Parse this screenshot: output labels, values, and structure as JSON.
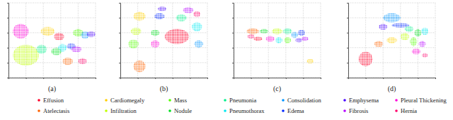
{
  "chart_data": [
    {
      "type": "scatter",
      "title": "(a)",
      "marker": "ellipse",
      "legend": "bottom",
      "grid": true,
      "tick_labels": false,
      "xlim": [
        0,
        100
      ],
      "ylim": [
        0,
        100
      ],
      "xticks": [
        0,
        20,
        40,
        60,
        80,
        100
      ],
      "yticks": [
        0,
        20,
        40,
        60,
        80,
        100
      ],
      "series": [
        {
          "name": "Effusion",
          "color": "#ff0029",
          "x": [
            58
          ],
          "y": [
            55
          ],
          "x_spread": [
            6
          ],
          "y_spread": [
            5
          ]
        },
        {
          "name": "Atelectasis",
          "color": "#ff6200",
          "x": [
            68
          ],
          "y": [
            22
          ],
          "x_spread": [
            6
          ],
          "y_spread": [
            5
          ]
        },
        {
          "name": "Cardiomegaly",
          "color": "#ffcf00",
          "x": [
            45
          ],
          "y": [
            62
          ],
          "x_spread": [
            8
          ],
          "y_spread": [
            6
          ]
        },
        {
          "name": "Infiltration",
          "color": "#c0ff00",
          "x": [
            20
          ],
          "y": [
            30
          ],
          "x_spread": [
            15
          ],
          "y_spread": [
            14
          ]
        },
        {
          "name": "Mass",
          "color": "#52ff00",
          "x": [
            80
          ],
          "y": [
            60
          ],
          "x_spread": [
            6
          ],
          "y_spread": [
            5
          ]
        },
        {
          "name": "Nodule",
          "color": "#00e01d",
          "x": [
            55
          ],
          "y": [
            35
          ],
          "x_spread": [
            6
          ],
          "y_spread": [
            5
          ]
        },
        {
          "name": "Pneumonia",
          "color": "#00f08c",
          "x": [
            38
          ],
          "y": [
            38
          ],
          "x_spread": [
            6
          ],
          "y_spread": [
            6
          ]
        },
        {
          "name": "Pneumothorax",
          "color": "#00e8f0",
          "x": [
            62
          ],
          "y": [
            40
          ],
          "x_spread": [
            5
          ],
          "y_spread": [
            5
          ]
        },
        {
          "name": "Consolidation",
          "color": "#0094ff",
          "x": [
            88
          ],
          "y": [
            57
          ],
          "x_spread": [
            5
          ],
          "y_spread": [
            5
          ]
        },
        {
          "name": "Edema",
          "color": "#0026ff",
          "x": [
            72
          ],
          "y": [
            42
          ],
          "x_spread": [
            5
          ],
          "y_spread": [
            4
          ]
        },
        {
          "name": "Emphysema",
          "color": "#4700ff",
          "x": [
            95
          ],
          "y": [
            58
          ],
          "x_spread": [
            5
          ],
          "y_spread": [
            4
          ]
        },
        {
          "name": "Fibrosis",
          "color": "#b600ff",
          "x": [
            78
          ],
          "y": [
            38
          ],
          "x_spread": [
            6
          ],
          "y_spread": [
            4
          ]
        },
        {
          "name": "Pleural Thickening",
          "color": "#ff00d9",
          "x": [
            14
          ],
          "y": [
            62
          ],
          "x_spread": [
            9
          ],
          "y_spread": [
            10
          ]
        },
        {
          "name": "Hernia",
          "color": "#ff006b",
          "x": [
            85
          ],
          "y": [
            22
          ],
          "x_spread": [
            5
          ],
          "y_spread": [
            4
          ]
        }
      ]
    },
    {
      "type": "scatter",
      "title": "(b)",
      "marker": "ellipse",
      "grid": true,
      "tick_labels": false,
      "xlim": [
        0,
        100
      ],
      "ylim": [
        0,
        100
      ],
      "xticks": [
        0,
        20,
        40,
        60,
        80,
        100
      ],
      "yticks": [
        0,
        20,
        40,
        60,
        80,
        100
      ],
      "series": [
        {
          "color": "#ff0029",
          "x": [
            65
          ],
          "y": [
            55
          ],
          "x_spread": [
            14
          ],
          "y_spread": [
            10
          ]
        },
        {
          "color": "#ff6200",
          "x": [
            22
          ],
          "y": [
            15
          ],
          "x_spread": [
            7
          ],
          "y_spread": [
            8
          ]
        },
        {
          "color": "#ffcf00",
          "x": [
            22
          ],
          "y": [
            82
          ],
          "x_spread": [
            7
          ],
          "y_spread": [
            6
          ]
        },
        {
          "color": "#c0ff00",
          "x": [
            18
          ],
          "y": [
            62
          ],
          "x_spread": [
            6
          ],
          "y_spread": [
            5
          ]
        },
        {
          "color": "#52ff00",
          "x": [
            15
          ],
          "y": [
            45
          ],
          "x_spread": [
            6
          ],
          "y_spread": [
            6
          ]
        },
        {
          "color": "#00e01d",
          "x": [
            40
          ],
          "y": [
            60
          ],
          "x_spread": [
            5
          ],
          "y_spread": [
            4
          ]
        },
        {
          "color": "#00f08c",
          "x": [
            70
          ],
          "y": [
            80
          ],
          "x_spread": [
            6
          ],
          "y_spread": [
            5
          ]
        },
        {
          "color": "#00e8f0",
          "x": [
            88
          ],
          "y": [
            68
          ],
          "x_spread": [
            6
          ],
          "y_spread": [
            6
          ]
        },
        {
          "color": "#0094ff",
          "x": [
            90
          ],
          "y": [
            45
          ],
          "x_spread": [
            5
          ],
          "y_spread": [
            5
          ]
        },
        {
          "color": "#0026ff",
          "x": [
            45
          ],
          "y": [
            82
          ],
          "x_spread": [
            6
          ],
          "y_spread": [
            4
          ]
        },
        {
          "color": "#4700ff",
          "x": [
            48
          ],
          "y": [
            92
          ],
          "x_spread": [
            5
          ],
          "y_spread": [
            3
          ]
        },
        {
          "color": "#b600ff",
          "x": [
            78
          ],
          "y": [
            90
          ],
          "x_spread": [
            6
          ],
          "y_spread": [
            4
          ]
        },
        {
          "color": "#ff00d9",
          "x": [
            40
          ],
          "y": [
            45
          ],
          "x_spread": [
            5
          ],
          "y_spread": [
            5
          ]
        },
        {
          "color": "#ff006b",
          "x": [
            88
          ],
          "y": [
            85
          ],
          "x_spread": [
            4
          ],
          "y_spread": [
            4
          ]
        }
      ]
    },
    {
      "type": "scatter",
      "title": "(c)",
      "marker": "ellipse",
      "grid": true,
      "tick_labels": false,
      "xlim": [
        0,
        100
      ],
      "ylim": [
        0,
        100
      ],
      "xticks": [
        0,
        20,
        40,
        60,
        80,
        100
      ],
      "yticks": [
        0,
        20,
        40,
        60,
        80,
        100
      ],
      "series": [
        {
          "color": "#ff0029",
          "x": [
            28
          ],
          "y": [
            52
          ],
          "x_spread": [
            5
          ],
          "y_spread": [
            3
          ]
        },
        {
          "color": "#ff6200",
          "x": [
            22
          ],
          "y": [
            62
          ],
          "x_spread": [
            7
          ],
          "y_spread": [
            4
          ]
        },
        {
          "color": "#ffcf00",
          "x": [
            88
          ],
          "y": [
            22
          ],
          "x_spread": [
            4
          ],
          "y_spread": [
            3
          ]
        },
        {
          "color": "#c0ff00",
          "x": [
            50
          ],
          "y": [
            62
          ],
          "x_spread": [
            6
          ],
          "y_spread": [
            4
          ]
        },
        {
          "color": "#52ff00",
          "x": [
            62
          ],
          "y": [
            50
          ],
          "x_spread": [
            4
          ],
          "y_spread": [
            4
          ]
        },
        {
          "color": "#00e01d",
          "x": [
            35
          ],
          "y": [
            62
          ],
          "x_spread": [
            5
          ],
          "y_spread": [
            3
          ]
        },
        {
          "color": "#00f08c",
          "x": [
            62
          ],
          "y": [
            62
          ],
          "x_spread": [
            5
          ],
          "y_spread": [
            4
          ]
        },
        {
          "color": "#00e8f0",
          "x": [
            52
          ],
          "y": [
            50
          ],
          "x_spread": [
            4
          ],
          "y_spread": [
            4
          ]
        },
        {
          "color": "#0094ff",
          "x": [
            70
          ],
          "y": [
            57
          ],
          "x_spread": [
            4
          ],
          "y_spread": [
            4
          ]
        },
        {
          "color": "#0026ff",
          "x": [
            78
          ],
          "y": [
            60
          ],
          "x_spread": [
            4
          ],
          "y_spread": [
            4
          ]
        },
        {
          "color": "#4700ff",
          "x": [
            75
          ],
          "y": [
            50
          ],
          "x_spread": [
            4
          ],
          "y_spread": [
            3
          ]
        },
        {
          "color": "#b600ff",
          "x": [
            82
          ],
          "y": [
            52
          ],
          "x_spread": [
            4
          ],
          "y_spread": [
            3
          ]
        },
        {
          "color": "#ff00d9",
          "x": [
            42
          ],
          "y": [
            52
          ],
          "x_spread": [
            5
          ],
          "y_spread": [
            4
          ]
        },
        {
          "color": "#ff006b",
          "x": [
            20
          ],
          "y": [
            55
          ],
          "x_spread": [
            4
          ],
          "y_spread": [
            3
          ]
        }
      ]
    },
    {
      "type": "scatter",
      "title": "(d)",
      "marker": "ellipse",
      "grid": true,
      "tick_labels": false,
      "xlim": [
        0,
        100
      ],
      "ylim": [
        0,
        100
      ],
      "xticks": [
        0,
        20,
        40,
        60,
        80,
        100
      ],
      "yticks": [
        0,
        20,
        40,
        60,
        80,
        100
      ],
      "series": [
        {
          "color": "#ff0029",
          "x": [
            20
          ],
          "y": [
            25
          ],
          "x_spread": [
            8
          ],
          "y_spread": [
            10
          ]
        },
        {
          "color": "#ff6200",
          "x": [
            35
          ],
          "y": [
            45
          ],
          "x_spread": [
            5
          ],
          "y_spread": [
            4
          ]
        },
        {
          "color": "#ffcf00",
          "x": [
            50
          ],
          "y": [
            50
          ],
          "x_spread": [
            6
          ],
          "y_spread": [
            4
          ]
        },
        {
          "color": "#c0ff00",
          "x": [
            65
          ],
          "y": [
            55
          ],
          "x_spread": [
            5
          ],
          "y_spread": [
            5
          ]
        },
        {
          "color": "#52ff00",
          "x": [
            75
          ],
          "y": [
            48
          ],
          "x_spread": [
            4
          ],
          "y_spread": [
            6
          ]
        },
        {
          "color": "#00e01d",
          "x": [
            80
          ],
          "y": [
            60
          ],
          "x_spread": [
            4
          ],
          "y_spread": [
            5
          ]
        },
        {
          "color": "#00f08c",
          "x": [
            70
          ],
          "y": [
            65
          ],
          "x_spread": [
            5
          ],
          "y_spread": [
            4
          ]
        },
        {
          "color": "#00e8f0",
          "x": [
            88
          ],
          "y": [
            62
          ],
          "x_spread": [
            4
          ],
          "y_spread": [
            5
          ]
        },
        {
          "color": "#0094ff",
          "x": [
            50
          ],
          "y": [
            80
          ],
          "x_spread": [
            10
          ],
          "y_spread": [
            6
          ]
        },
        {
          "color": "#0026ff",
          "x": [
            60
          ],
          "y": [
            70
          ],
          "x_spread": [
            10
          ],
          "y_spread": [
            3
          ]
        },
        {
          "color": "#4700ff",
          "x": [
            40
          ],
          "y": [
            68
          ],
          "x_spread": [
            5
          ],
          "y_spread": [
            4
          ]
        },
        {
          "color": "#b600ff",
          "x": [
            85
          ],
          "y": [
            45
          ],
          "x_spread": [
            4
          ],
          "y_spread": [
            4
          ]
        },
        {
          "color": "#ff00d9",
          "x": [
            78
          ],
          "y": [
            35
          ],
          "x_spread": [
            5
          ],
          "y_spread": [
            4
          ]
        },
        {
          "color": "#ff006b",
          "x": [
            88
          ],
          "y": [
            30
          ],
          "x_spread": [
            3
          ],
          "y_spread": [
            3
          ]
        }
      ]
    }
  ]
}
